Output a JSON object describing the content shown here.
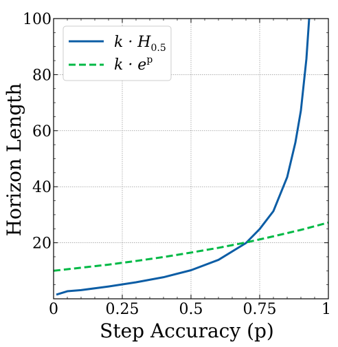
{
  "chart_data": {
    "type": "line",
    "xlabel": "Step Accuracy (p)",
    "ylabel": "Horizon Length",
    "xlim": [
      0,
      1
    ],
    "ylim": [
      0,
      100
    ],
    "grid": true,
    "legend_position": "top-left",
    "x_ticks": [
      0,
      0.25,
      0.5,
      0.75,
      1
    ],
    "x_tick_labels": [
      "0",
      "0.25",
      "0.5",
      "0.75",
      "1"
    ],
    "y_ticks": [
      20,
      40,
      60,
      80,
      100
    ],
    "y_tick_labels": [
      "20",
      "40",
      "60",
      "80",
      "100"
    ],
    "series": [
      {
        "name": "k·H0.5",
        "legend_main": "k · H",
        "legend_sub": "0.5",
        "style": "solid",
        "color": "#0C5DA5",
        "x": [
          0.01,
          0.05,
          0.1,
          0.2,
          0.3,
          0.4,
          0.5,
          0.6,
          0.7,
          0.75,
          0.8,
          0.85,
          0.88,
          0.9,
          0.92,
          0.93
        ],
        "y": [
          1.5,
          2.7,
          3.1,
          4.4,
          5.9,
          7.7,
          10.2,
          13.9,
          19.9,
          24.9,
          31.3,
          43.4,
          55.8,
          67.2,
          85.6,
          100
        ]
      },
      {
        "name": "k·e^p",
        "legend_main": "k · e",
        "legend_sup": "p",
        "style": "dashed",
        "color": "#00B945",
        "x": [
          0,
          0.1,
          0.2,
          0.3,
          0.4,
          0.5,
          0.6,
          0.7,
          0.8,
          0.9,
          1.0
        ],
        "y": [
          10,
          11.1,
          12.2,
          13.5,
          14.9,
          16.5,
          18.2,
          20.1,
          22.3,
          24.6,
          27.2
        ]
      }
    ]
  }
}
